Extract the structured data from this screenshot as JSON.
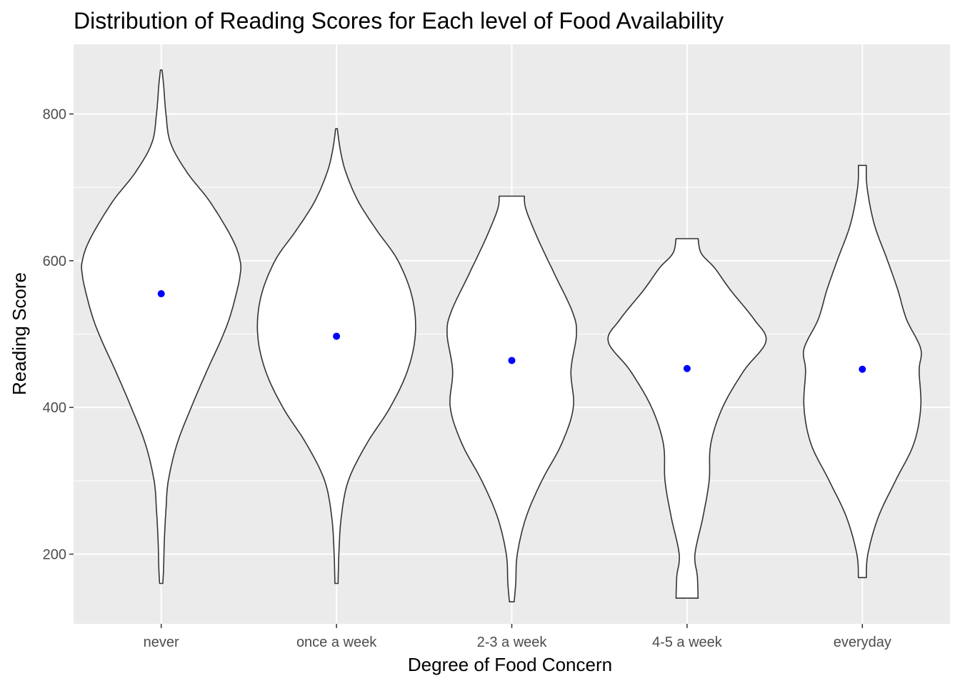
{
  "chart_data": {
    "type": "violin",
    "title": "Distribution of Reading Scores for Each level of Food Availability",
    "xlabel": "Degree of Food Concern",
    "ylabel": "Reading Score",
    "categories": [
      "never",
      "once a week",
      "2-3 a week",
      "4-5 a week",
      "everyday"
    ],
    "ylim": [
      105,
      895
    ],
    "yticks": [
      200,
      400,
      600,
      800
    ],
    "means": [
      555,
      497,
      464,
      453,
      452
    ],
    "grid": true,
    "background": "#ebebeb",
    "grid_color": "#ffffff",
    "violin_fill": "#ffffff",
    "violin_stroke": "#333333",
    "mean_color": "#0000ff",
    "violins": [
      {
        "category": "never",
        "ymin": 160,
        "ymax": 860,
        "profile": [
          [
            160,
            0.02
          ],
          [
            180,
            0.03
          ],
          [
            220,
            0.04
          ],
          [
            260,
            0.06
          ],
          [
            300,
            0.09
          ],
          [
            350,
            0.2
          ],
          [
            400,
            0.38
          ],
          [
            450,
            0.58
          ],
          [
            490,
            0.75
          ],
          [
            520,
            0.86
          ],
          [
            550,
            0.94
          ],
          [
            580,
            1.0
          ],
          [
            600,
            1.0
          ],
          [
            630,
            0.9
          ],
          [
            680,
            0.62
          ],
          [
            720,
            0.33
          ],
          [
            760,
            0.12
          ],
          [
            800,
            0.06
          ],
          [
            840,
            0.03
          ],
          [
            860,
            0.01
          ]
        ]
      },
      {
        "category": "once a week",
        "ymin": 160,
        "ymax": 780,
        "profile": [
          [
            160,
            0.02
          ],
          [
            200,
            0.03
          ],
          [
            250,
            0.06
          ],
          [
            300,
            0.15
          ],
          [
            350,
            0.38
          ],
          [
            400,
            0.68
          ],
          [
            450,
            0.9
          ],
          [
            500,
            1.0
          ],
          [
            550,
            0.96
          ],
          [
            600,
            0.78
          ],
          [
            640,
            0.52
          ],
          [
            680,
            0.28
          ],
          [
            720,
            0.12
          ],
          [
            750,
            0.05
          ],
          [
            780,
            0.01
          ]
        ]
      },
      {
        "category": "2-3 a week",
        "ymin": 135,
        "ymax": 688,
        "profile": [
          [
            135,
            0.03
          ],
          [
            160,
            0.05
          ],
          [
            200,
            0.07
          ],
          [
            250,
            0.18
          ],
          [
            300,
            0.38
          ],
          [
            350,
            0.63
          ],
          [
            400,
            0.78
          ],
          [
            450,
            0.75
          ],
          [
            500,
            0.82
          ],
          [
            530,
            0.77
          ],
          [
            580,
            0.55
          ],
          [
            630,
            0.33
          ],
          [
            670,
            0.18
          ],
          [
            688,
            0.16
          ]
        ]
      },
      {
        "category": "4-5 a week",
        "ymin": 140,
        "ymax": 630,
        "profile": [
          [
            140,
            0.14
          ],
          [
            170,
            0.13
          ],
          [
            200,
            0.1
          ],
          [
            250,
            0.2
          ],
          [
            300,
            0.28
          ],
          [
            350,
            0.3
          ],
          [
            400,
            0.45
          ],
          [
            450,
            0.72
          ],
          [
            490,
            1.0
          ],
          [
            520,
            0.85
          ],
          [
            560,
            0.55
          ],
          [
            590,
            0.35
          ],
          [
            610,
            0.18
          ],
          [
            630,
            0.14
          ]
        ]
      },
      {
        "category": "everyday",
        "ymin": 168,
        "ymax": 730,
        "profile": [
          [
            168,
            0.05
          ],
          [
            200,
            0.07
          ],
          [
            250,
            0.2
          ],
          [
            300,
            0.42
          ],
          [
            350,
            0.65
          ],
          [
            400,
            0.74
          ],
          [
            450,
            0.72
          ],
          [
            480,
            0.74
          ],
          [
            520,
            0.56
          ],
          [
            560,
            0.45
          ],
          [
            600,
            0.32
          ],
          [
            650,
            0.15
          ],
          [
            700,
            0.06
          ],
          [
            730,
            0.05
          ]
        ]
      }
    ]
  }
}
